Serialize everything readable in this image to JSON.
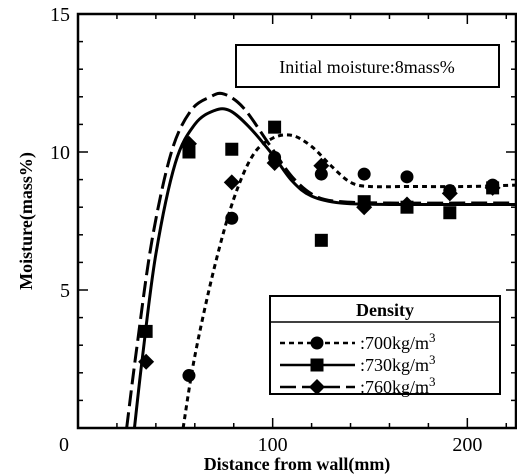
{
  "chart_data": {
    "type": "scatter",
    "xlabel": "Distance from wall(mm)",
    "ylabel": "Moisture(mass%)",
    "xlim": [
      0,
      225
    ],
    "ylim": [
      0,
      15
    ],
    "xticks": [
      0,
      100,
      200
    ],
    "yticks": [
      5,
      10,
      15
    ],
    "annotation": "Initial moisture:8mass%",
    "legend": {
      "title": "Density",
      "position": "bottom-right"
    },
    "series": [
      {
        "name": ":700kg/m",
        "name_superscript": "3",
        "marker": "circle",
        "line_style": "dotted",
        "points": [
          {
            "x": 57,
            "y": 1.9
          },
          {
            "x": 79,
            "y": 7.6
          },
          {
            "x": 101,
            "y": 9.8
          },
          {
            "x": 125,
            "y": 9.2
          },
          {
            "x": 147,
            "y": 9.2
          },
          {
            "x": 169,
            "y": 9.1
          },
          {
            "x": 191,
            "y": 8.6
          },
          {
            "x": 213,
            "y": 8.8
          }
        ],
        "curve": [
          {
            "x": 54,
            "y": 0
          },
          {
            "x": 60,
            "y": 2.6
          },
          {
            "x": 70,
            "y": 5.8
          },
          {
            "x": 80,
            "y": 8.3
          },
          {
            "x": 90,
            "y": 9.9
          },
          {
            "x": 100,
            "y": 10.5
          },
          {
            "x": 110,
            "y": 10.6
          },
          {
            "x": 120,
            "y": 10.2
          },
          {
            "x": 130,
            "y": 9.5
          },
          {
            "x": 140,
            "y": 8.9
          },
          {
            "x": 150,
            "y": 8.75
          },
          {
            "x": 170,
            "y": 8.75
          },
          {
            "x": 200,
            "y": 8.75
          },
          {
            "x": 225,
            "y": 8.8
          }
        ]
      },
      {
        "name": ":730kg/m",
        "name_superscript": "3",
        "marker": "square",
        "line_style": "solid",
        "points": [
          {
            "x": 35,
            "y": 3.5
          },
          {
            "x": 57,
            "y": 10.0
          },
          {
            "x": 79,
            "y": 10.1
          },
          {
            "x": 101,
            "y": 10.9
          },
          {
            "x": 125,
            "y": 6.8
          },
          {
            "x": 147,
            "y": 8.2
          },
          {
            "x": 169,
            "y": 8.0
          },
          {
            "x": 191,
            "y": 7.8
          },
          {
            "x": 213,
            "y": 8.7
          }
        ],
        "curve": [
          {
            "x": 29,
            "y": 0
          },
          {
            "x": 33,
            "y": 2.5
          },
          {
            "x": 40,
            "y": 6.3
          },
          {
            "x": 50,
            "y": 9.6
          },
          {
            "x": 60,
            "y": 11.0
          },
          {
            "x": 70,
            "y": 11.5
          },
          {
            "x": 78,
            "y": 11.5
          },
          {
            "x": 88,
            "y": 10.9
          },
          {
            "x": 100,
            "y": 9.9
          },
          {
            "x": 110,
            "y": 8.95
          },
          {
            "x": 120,
            "y": 8.4
          },
          {
            "x": 135,
            "y": 8.15
          },
          {
            "x": 160,
            "y": 8.1
          },
          {
            "x": 200,
            "y": 8.1
          },
          {
            "x": 225,
            "y": 8.1
          }
        ]
      },
      {
        "name": ":760kg/m",
        "name_superscript": "3",
        "marker": "diamond",
        "line_style": "long-dash",
        "points": [
          {
            "x": 35,
            "y": 2.4
          },
          {
            "x": 57,
            "y": 10.3
          },
          {
            "x": 79,
            "y": 8.9
          },
          {
            "x": 101,
            "y": 9.6
          },
          {
            "x": 125,
            "y": 9.5
          },
          {
            "x": 147,
            "y": 8.0
          },
          {
            "x": 169,
            "y": 8.1
          },
          {
            "x": 191,
            "y": 8.5
          },
          {
            "x": 213,
            "y": 8.7
          }
        ],
        "curve": [
          {
            "x": 25,
            "y": 0
          },
          {
            "x": 30,
            "y": 2.8
          },
          {
            "x": 38,
            "y": 6.8
          },
          {
            "x": 48,
            "y": 10.0
          },
          {
            "x": 58,
            "y": 11.5
          },
          {
            "x": 68,
            "y": 12.0
          },
          {
            "x": 75,
            "y": 12.1
          },
          {
            "x": 85,
            "y": 11.6
          },
          {
            "x": 98,
            "y": 10.3
          },
          {
            "x": 110,
            "y": 9.1
          },
          {
            "x": 122,
            "y": 8.4
          },
          {
            "x": 135,
            "y": 8.2
          },
          {
            "x": 160,
            "y": 8.15
          },
          {
            "x": 200,
            "y": 8.15
          },
          {
            "x": 225,
            "y": 8.15
          }
        ]
      }
    ]
  }
}
